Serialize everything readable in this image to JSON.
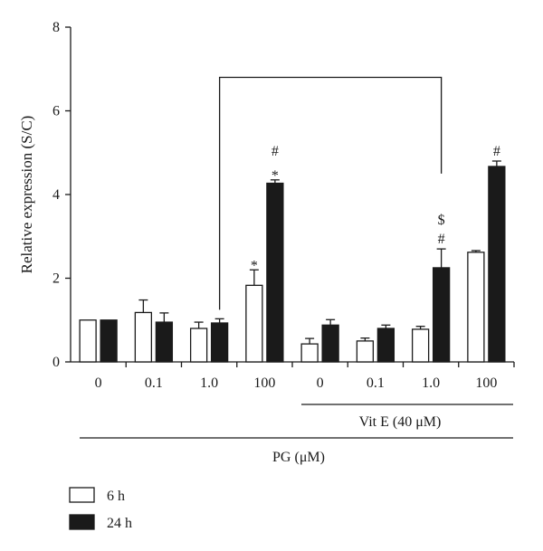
{
  "chart_data": {
    "type": "bar",
    "ylabel": "Relative expression (S/C)",
    "ylim": [
      0,
      8
    ],
    "yticks": [
      "0",
      "2",
      "4",
      "6",
      "8"
    ],
    "categories": [
      "0",
      "0.1",
      "1.0",
      "100",
      "0",
      "0.1",
      "1.0",
      "100"
    ],
    "series": [
      {
        "name": "6 h",
        "color": "#ffffff",
        "values": [
          1.0,
          1.18,
          0.8,
          1.83,
          0.43,
          0.5,
          0.78,
          2.62
        ],
        "errors": [
          0.0,
          0.3,
          0.15,
          0.37,
          0.13,
          0.07,
          0.07,
          0.04
        ],
        "annotations": [
          "",
          "",
          "",
          "*",
          "",
          "",
          "",
          ""
        ]
      },
      {
        "name": "24 h",
        "color": "#1a1a1a",
        "values": [
          1.0,
          0.95,
          0.93,
          4.27,
          0.88,
          0.8,
          2.25,
          4.67
        ],
        "errors": [
          0.0,
          0.22,
          0.1,
          0.08,
          0.13,
          0.08,
          0.45,
          0.13
        ],
        "annotations": [
          "",
          "",
          "",
          "#\n*",
          "",
          "",
          "$\n#",
          "#"
        ]
      }
    ],
    "group_labels": {
      "vit_e": "Vit E (40 μM)",
      "pg": "PG (μM)"
    },
    "comparison_bracket": {
      "from_category": 2,
      "to_category": 6
    },
    "legend": {
      "placement": "bottom-left"
    }
  }
}
